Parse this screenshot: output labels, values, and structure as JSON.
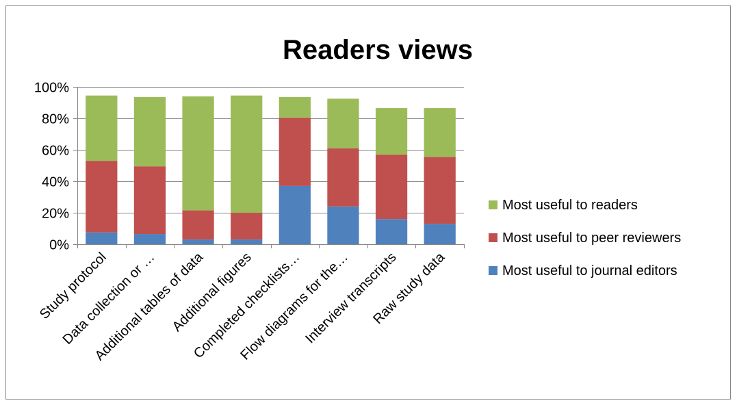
{
  "chart_data": {
    "type": "bar",
    "stacked": true,
    "title": "Readers views",
    "xlabel": "",
    "ylabel": "",
    "ylim": [
      0,
      100
    ],
    "y_ticks": [
      "0%",
      "20%",
      "40%",
      "60%",
      "80%",
      "100%"
    ],
    "grid": true,
    "legend_position": "right",
    "categories": [
      "Study protocol",
      "Data collection or …",
      "Additional tables of data",
      "Additional figures",
      "Completed checklists…",
      "Flow diagrams for the…",
      "Interview transcripts",
      "Raw study data"
    ],
    "series": [
      {
        "name": "Most useful to journal editors",
        "color": "#4F81BD",
        "values": [
          7.5,
          6.5,
          3,
          3,
          37,
          24,
          16,
          13
        ]
      },
      {
        "name": "Most useful to peer reviewers",
        "color": "#C0504D",
        "values": [
          45.5,
          43,
          18.5,
          17,
          43.5,
          37,
          41,
          42.5
        ]
      },
      {
        "name": "Most useful to readers",
        "color": "#9BBB59",
        "values": [
          41.5,
          44,
          72.5,
          74.5,
          13,
          31.5,
          29.5,
          31
        ]
      }
    ],
    "legend_order": [
      2,
      1,
      0
    ]
  }
}
